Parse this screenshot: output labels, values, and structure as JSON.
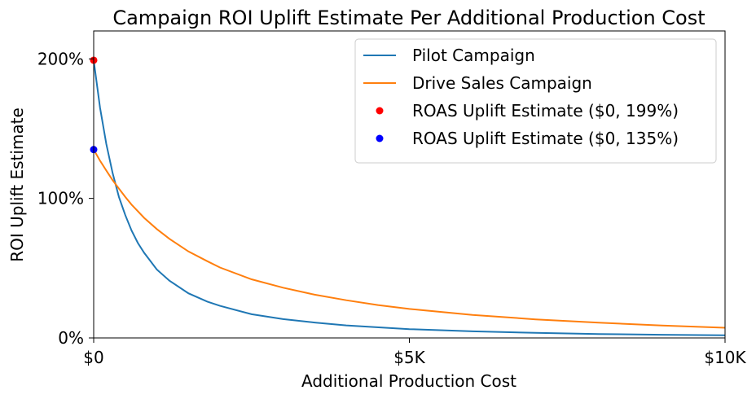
{
  "chart_data": {
    "type": "line",
    "title": "Campaign ROI Uplift Estimate Per Additional Production Cost",
    "xlabel": "Additional Production Cost",
    "ylabel": "ROI Uplift Estimate",
    "xlim": [
      0,
      10000
    ],
    "ylim": [
      0,
      220
    ],
    "x_ticks": [
      {
        "value": 0,
        "label": "$0"
      },
      {
        "value": 5000,
        "label": "$5K"
      },
      {
        "value": 10000,
        "label": "$10K"
      }
    ],
    "y_ticks": [
      {
        "value": 0,
        "label": "0%"
      },
      {
        "value": 100,
        "label": "100%"
      },
      {
        "value": 200,
        "label": "200%"
      }
    ],
    "grid": false,
    "legend_position": "top-right",
    "series": [
      {
        "name": "Pilot Campaign",
        "color": "#1f77b4",
        "x": [
          0,
          100,
          200,
          300,
          400,
          500,
          600,
          700,
          800,
          1000,
          1200,
          1500,
          1800,
          2000,
          2500,
          3000,
          3500,
          4000,
          5000,
          6000,
          7000,
          8000,
          9000,
          10000
        ],
        "y": [
          199,
          165,
          139,
          118,
          101,
          88,
          77,
          68,
          61,
          49,
          41,
          32,
          26,
          23,
          17,
          13.5,
          11,
          9,
          6.3,
          4.7,
          3.6,
          2.8,
          2.3,
          1.9
        ]
      },
      {
        "name": "Drive Sales Campaign",
        "color": "#ff7f0e",
        "x": [
          0,
          100,
          200,
          300,
          400,
          500,
          600,
          800,
          1000,
          1200,
          1500,
          1800,
          2000,
          2500,
          3000,
          3500,
          4000,
          4500,
          5000,
          6000,
          7000,
          8000,
          9000,
          10000
        ],
        "y": [
          135,
          127,
          120,
          113,
          107,
          101,
          95.5,
          86,
          78,
          71,
          62,
          55,
          50.5,
          42,
          36,
          31,
          27,
          23.6,
          20.8,
          16.5,
          13.3,
          10.9,
          8.9,
          7.3
        ]
      },
      {
        "name": "ROAS Uplift Estimate ($0, 199%)",
        "type": "scatter",
        "color": "#ff0000",
        "x": [
          0
        ],
        "y": [
          199
        ]
      },
      {
        "name": "ROAS Uplift Estimate ($0, 135%)",
        "type": "scatter",
        "color": "#0000ff",
        "x": [
          0
        ],
        "y": [
          135
        ]
      }
    ]
  }
}
